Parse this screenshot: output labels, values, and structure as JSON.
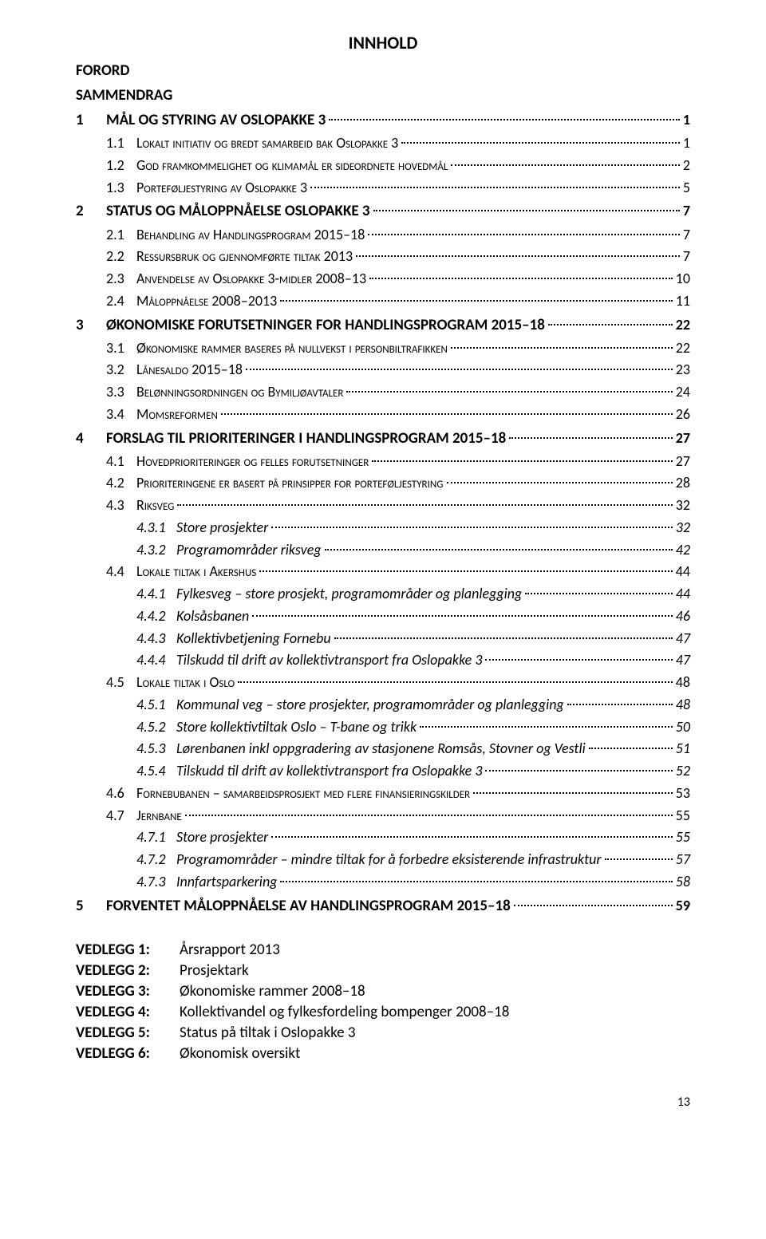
{
  "title": "INNHOLD",
  "entries": [
    {
      "level": 0,
      "num": "",
      "text": "FORORD",
      "page": ""
    },
    {
      "level": 0,
      "num": "",
      "text": "SAMMENDRAG",
      "page": ""
    },
    {
      "level": 1,
      "num": "1",
      "text": "MÅL OG STYRING AV OSLOPAKKE 3",
      "page": "1"
    },
    {
      "level": 2,
      "num": "1.1",
      "text": "Lokalt initiativ og bredt samarbeid bak Oslopakke 3",
      "page": "1"
    },
    {
      "level": 2,
      "num": "1.2",
      "text": "God framkommelighet og klimamål er sideordnete hovedmål",
      "page": "2"
    },
    {
      "level": 2,
      "num": "1.3",
      "text": "Porteføljestyring av Oslopakke 3",
      "page": "5"
    },
    {
      "level": 1,
      "num": "2",
      "text": "STATUS OG MÅLOPPNÅELSE OSLOPAKKE 3",
      "page": "7"
    },
    {
      "level": 2,
      "num": "2.1",
      "text": "Behandling av Handlingsprogram 2015–18",
      "page": "7"
    },
    {
      "level": 2,
      "num": "2.2",
      "text": "Ressursbruk og gjennomførte tiltak 2013",
      "page": "7"
    },
    {
      "level": 2,
      "num": "2.3",
      "text": "Anvendelse av Oslopakke 3-midler 2008–13",
      "page": "10"
    },
    {
      "level": 2,
      "num": "2.4",
      "text": "Måloppnåelse 2008–2013",
      "page": "11"
    },
    {
      "level": 1,
      "num": "3",
      "text": "ØKONOMISKE FORUTSETNINGER FOR HANDLINGSPROGRAM 2015–18",
      "page": "22"
    },
    {
      "level": 2,
      "num": "3.1",
      "text": "Økonomiske rammer baseres på nullvekst i personbiltrafikken",
      "page": "22"
    },
    {
      "level": 2,
      "num": "3.2",
      "text": "Lånesaldo 2015–18",
      "page": "23"
    },
    {
      "level": 2,
      "num": "3.3",
      "text": "Belønningsordningen og Bymiljøavtaler",
      "page": "24"
    },
    {
      "level": 2,
      "num": "3.4",
      "text": "Momsreformen",
      "page": "26"
    },
    {
      "level": 1,
      "num": "4",
      "text": "FORSLAG TIL PRIORITERINGER I HANDLINGSPROGRAM 2015–18",
      "page": "27"
    },
    {
      "level": 2,
      "num": "4.1",
      "text": "Hovedprioriteringer og felles forutsetninger",
      "page": "27"
    },
    {
      "level": 2,
      "num": "4.2",
      "text": "Prioriteringene er basert på prinsipper for porteføljestyring",
      "page": "28"
    },
    {
      "level": 2,
      "num": "4.3",
      "text": "Riksveg",
      "page": "32"
    },
    {
      "level": 3,
      "num": "4.3.1",
      "text": "Store prosjekter",
      "page": "32"
    },
    {
      "level": 3,
      "num": "4.3.2",
      "text": "Programområder riksveg",
      "page": "42"
    },
    {
      "level": 2,
      "num": "4.4",
      "text": "Lokale tiltak i Akershus",
      "page": "44"
    },
    {
      "level": 3,
      "num": "4.4.1",
      "text": "Fylkesveg – store prosjekt, programområder og planlegging",
      "page": "44"
    },
    {
      "level": 3,
      "num": "4.4.2",
      "text": "Kolsåsbanen",
      "page": "46"
    },
    {
      "level": 3,
      "num": "4.4.3",
      "text": "Kollektivbetjening Fornebu",
      "page": "47"
    },
    {
      "level": 3,
      "num": "4.4.4",
      "text": "Tilskudd til drift av kollektivtransport fra Oslopakke 3",
      "page": "47"
    },
    {
      "level": 2,
      "num": "4.5",
      "text": "Lokale tiltak i Oslo",
      "page": "48"
    },
    {
      "level": 3,
      "num": "4.5.1",
      "text": "Kommunal veg – store prosjekter, programområder og planlegging",
      "page": "48"
    },
    {
      "level": 3,
      "num": "4.5.2",
      "text": "Store kollektivtiltak Oslo – T-bane og trikk",
      "page": "50"
    },
    {
      "level": 3,
      "num": "4.5.3",
      "text": "Lørenbanen inkl oppgradering av stasjonene Romsås, Stovner og Vestli",
      "page": "51"
    },
    {
      "level": 3,
      "num": "4.5.4",
      "text": "Tilskudd til drift av kollektivtransport fra Oslopakke 3",
      "page": "52"
    },
    {
      "level": 2,
      "num": "4.6",
      "text": "Fornebubanen – samarbeidsprosjekt med flere finansieringskilder",
      "page": "53"
    },
    {
      "level": 2,
      "num": "4.7",
      "text": "Jernbane",
      "page": "55"
    },
    {
      "level": 3,
      "num": "4.7.1",
      "text": "Store prosjekter",
      "page": "55"
    },
    {
      "level": 3,
      "num": "4.7.2",
      "text": "Programområder – mindre tiltak for å forbedre eksisterende infrastruktur",
      "page": "57"
    },
    {
      "level": 3,
      "num": "4.7.3",
      "text": "Innfartsparkering",
      "page": "58"
    },
    {
      "level": 1,
      "num": "5",
      "text": "FORVENTET MÅLOPPNÅELSE AV HANDLINGSPROGRAM 2015–18",
      "page": "59"
    }
  ],
  "vedlegg": [
    {
      "label": "VEDLEGG 1:",
      "text": "Årsrapport 2013"
    },
    {
      "label": "VEDLEGG 2:",
      "text": "Prosjektark"
    },
    {
      "label": "VEDLEGG 3:",
      "text": "Økonomiske rammer 2008–18"
    },
    {
      "label": "VEDLEGG 4:",
      "text": "Kollektivandel og fylkesfordeling bompenger 2008–18"
    },
    {
      "label": "VEDLEGG 5:",
      "text": "Status på tiltak i Oslopakke 3"
    },
    {
      "label": "VEDLEGG 6:",
      "text": "Økonomisk oversikt"
    }
  ],
  "footer_page": "13",
  "styles": {
    "body_bg": "#ffffff",
    "text_color": "#000000",
    "title_fontsize": 22,
    "l1_fontsize": 19,
    "l2_fontsize": 18,
    "l3_fontsize": 18
  }
}
